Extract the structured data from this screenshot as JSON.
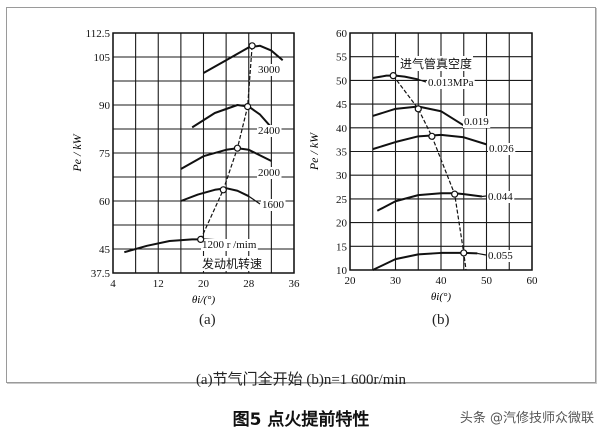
{
  "figure": {
    "caption": "(a)节气门全开始  (b)n=1 600r/min",
    "title": "图5 点火提前特性",
    "watermark": "头条 @汽修技师众微联"
  },
  "chart_data": [
    {
      "id": "a",
      "type": "line",
      "sublabel": "(a)",
      "title": "",
      "xlabel": "θi/(°)",
      "ylabel": "Pe / kW",
      "xlim": [
        4,
        36
      ],
      "ylim": [
        37.5,
        112.5
      ],
      "xticks": [
        4,
        12,
        20,
        28,
        36
      ],
      "yticks": [
        37.5,
        45,
        60,
        75,
        90,
        105,
        112.5
      ],
      "grid": true,
      "legend_title": "发动机转速",
      "legend_unit": "r /min",
      "series": [
        {
          "name": "1200",
          "label": "1200 r /mim",
          "x": [
            6,
            10,
            14,
            18,
            20,
            22,
            24
          ],
          "y": [
            44,
            46,
            47.5,
            48,
            48,
            47.8,
            47.5
          ]
        },
        {
          "name": "1600",
          "label": "1600",
          "x": [
            16,
            19,
            22,
            24,
            26,
            28
          ],
          "y": [
            60,
            62,
            63.5,
            64,
            63.2,
            61.5
          ]
        },
        {
          "name": "2000",
          "label": "2000",
          "x": [
            16,
            20,
            24,
            26,
            28,
            32
          ],
          "y": [
            70,
            74,
            76,
            76.5,
            76,
            72.5
          ]
        },
        {
          "name": "2400",
          "label": "2400",
          "x": [
            18,
            22,
            26,
            28,
            30,
            32
          ],
          "y": [
            83,
            87.5,
            90,
            89.5,
            87,
            83
          ]
        },
        {
          "name": "3000",
          "label": "3000",
          "x": [
            20,
            24,
            28,
            30,
            32,
            34
          ],
          "y": [
            100,
            104,
            108,
            108.5,
            107,
            104
          ]
        }
      ],
      "optimum_line": {
        "name": "max power points",
        "x": [
          19.5,
          23.5,
          26,
          27.8,
          28.6
        ],
        "y": [
          48,
          63.5,
          76.5,
          89.5,
          108.5
        ]
      }
    },
    {
      "id": "b",
      "type": "line",
      "sublabel": "(b)",
      "title": "",
      "xlabel": "θi(°)",
      "ylabel": "Pe / kW",
      "xlim": [
        20,
        60
      ],
      "ylim": [
        10,
        60
      ],
      "xticks": [
        20,
        30,
        40,
        50,
        60
      ],
      "yticks": [
        10,
        15,
        20,
        25,
        30,
        35,
        40,
        45,
        50,
        55,
        60
      ],
      "grid": true,
      "legend_title": "进气管真空度",
      "legend_unit": "MPa",
      "series": [
        {
          "name": "0.013",
          "label": "0.013MPa",
          "x": [
            25,
            28,
            30,
            32,
            35
          ],
          "y": [
            50.5,
            51,
            51,
            50.8,
            50.2
          ]
        },
        {
          "name": "0.019",
          "label": "0.019",
          "x": [
            25,
            30,
            35,
            40,
            45
          ],
          "y": [
            42.5,
            44,
            44.5,
            43.5,
            40.5
          ]
        },
        {
          "name": "0.026",
          "label": "0.026",
          "x": [
            25,
            30,
            35,
            40,
            45,
            50
          ],
          "y": [
            35.5,
            37,
            38.2,
            38.5,
            38,
            36.5
          ]
        },
        {
          "name": "0.044",
          "label": "0.044",
          "x": [
            26,
            30,
            35,
            40,
            43,
            45,
            49
          ],
          "y": [
            22.5,
            24.5,
            25.8,
            26.2,
            26.2,
            26,
            25.5
          ]
        },
        {
          "name": "0.055",
          "label": "0.055",
          "x": [
            25,
            30,
            35,
            40,
            45,
            48
          ],
          "y": [
            10,
            12.3,
            13.3,
            13.6,
            13.6,
            13.5
          ]
        }
      ],
      "optimum_line": {
        "name": "max power points",
        "x": [
          29.5,
          35,
          38,
          43,
          45,
          45.5
        ],
        "y": [
          51,
          44,
          38.2,
          26,
          13.6,
          10
        ]
      }
    }
  ]
}
